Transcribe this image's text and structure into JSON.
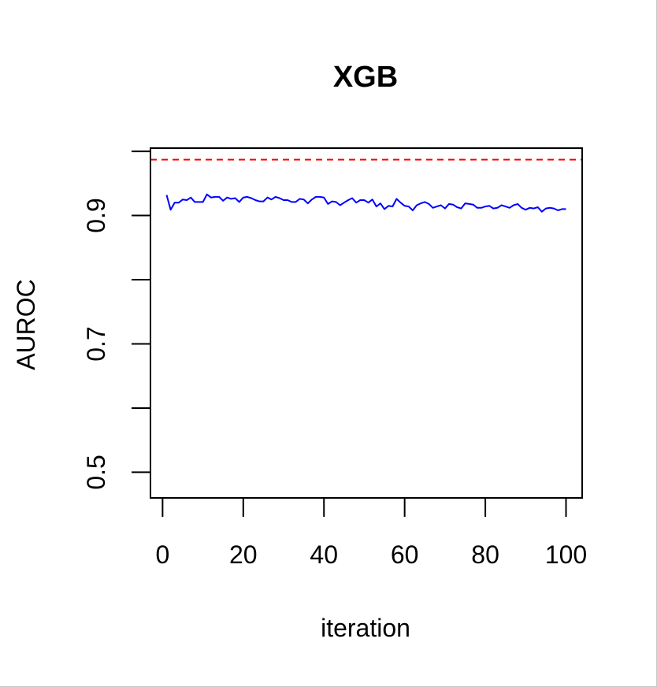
{
  "chart_data": {
    "type": "line",
    "title": "XGB",
    "xlabel": "iteration",
    "ylabel": "AUROC",
    "xlim": [
      -3,
      104
    ],
    "ylim": [
      0.46,
      1.005
    ],
    "xticks": [
      0,
      20,
      40,
      60,
      80,
      100
    ],
    "xtick_labels": [
      "0",
      "20",
      "40",
      "60",
      "80",
      "100"
    ],
    "yticks": [
      0.5,
      0.6,
      0.7,
      0.8,
      0.9,
      1.0
    ],
    "ytick_labels": [
      "0.5",
      "",
      "0.7",
      "",
      "0.9",
      ""
    ],
    "grid": false,
    "reference_line": {
      "y": 0.987,
      "color": "#ff0000",
      "style": "dashed"
    },
    "series": [
      {
        "color": "#0000ff",
        "x": [
          1,
          2,
          3,
          4,
          5,
          6,
          7,
          8,
          9,
          10,
          11,
          12,
          13,
          14,
          15,
          16,
          17,
          18,
          19,
          20,
          21,
          22,
          23,
          24,
          25,
          26,
          27,
          28,
          29,
          30,
          31,
          32,
          33,
          34,
          35,
          36,
          37,
          38,
          39,
          40,
          41,
          42,
          43,
          44,
          45,
          46,
          47,
          48,
          49,
          50,
          51,
          52,
          53,
          54,
          55,
          56,
          57,
          58,
          59,
          60,
          61,
          62,
          63,
          64,
          65,
          66,
          67,
          68,
          69,
          70,
          71,
          72,
          73,
          74,
          75,
          76,
          77,
          78,
          79,
          80,
          81,
          82,
          83,
          84,
          85,
          86,
          87,
          88,
          89,
          90,
          91,
          92,
          93,
          94,
          95,
          96,
          97,
          98,
          99,
          100
        ],
        "values": [
          0.932,
          0.909,
          0.92,
          0.92,
          0.925,
          0.924,
          0.928,
          0.921,
          0.921,
          0.921,
          0.933,
          0.928,
          0.929,
          0.929,
          0.923,
          0.928,
          0.926,
          0.927,
          0.921,
          0.928,
          0.929,
          0.927,
          0.924,
          0.922,
          0.922,
          0.928,
          0.925,
          0.929,
          0.927,
          0.924,
          0.924,
          0.921,
          0.921,
          0.926,
          0.925,
          0.919,
          0.925,
          0.929,
          0.929,
          0.928,
          0.918,
          0.922,
          0.921,
          0.916,
          0.92,
          0.924,
          0.927,
          0.92,
          0.924,
          0.924,
          0.92,
          0.925,
          0.914,
          0.919,
          0.91,
          0.915,
          0.914,
          0.926,
          0.92,
          0.915,
          0.914,
          0.908,
          0.916,
          0.919,
          0.921,
          0.918,
          0.912,
          0.914,
          0.916,
          0.911,
          0.918,
          0.917,
          0.913,
          0.911,
          0.919,
          0.918,
          0.917,
          0.912,
          0.912,
          0.914,
          0.915,
          0.911,
          0.912,
          0.916,
          0.914,
          0.912,
          0.916,
          0.918,
          0.912,
          0.909,
          0.912,
          0.911,
          0.913,
          0.906,
          0.911,
          0.912,
          0.911,
          0.908,
          0.91,
          0.91
        ]
      }
    ]
  }
}
